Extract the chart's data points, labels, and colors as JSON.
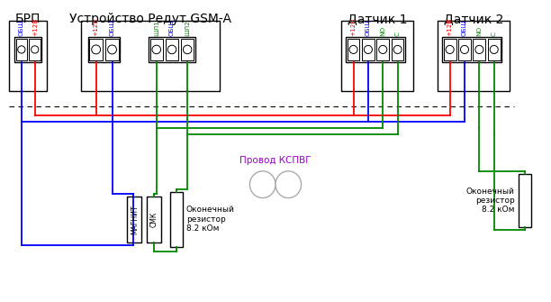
{
  "title_brp": "БРП",
  "title_redut": "Устройство Редут GSM-A",
  "title_d1": "Датчик 1",
  "title_d2": "Датчик 2",
  "label_kspvg": "Провод КСПВГ",
  "label_res1": "Оконечный\nрезистор\n8.2 кОм",
  "label_res2": "Оконечный\nрезистор\n8.2 кОм",
  "label_magnit": "МАГНИТ",
  "label_smk": "СМК",
  "label_brp_pins": [
    "ОБЩ",
    "+12В"
  ],
  "label_redut_pins1": [
    "+12В",
    "ОБЩ"
  ],
  "label_redut_pins2": [
    "ШЛ1",
    "ОБЩ",
    "ШЛ2"
  ],
  "label_d1_pins": [
    "+12В",
    "ОБЩ",
    "NO",
    "С"
  ],
  "label_d2_pins": [
    "+12В",
    "ОБЩ",
    "NO",
    "С"
  ],
  "color_red": "#ff0000",
  "color_blue": "#0000ff",
  "color_green": "#008800",
  "color_black": "#000000",
  "color_gray": "#aaaaaa",
  "color_kspvg": "#9900cc",
  "bg_color": "#ffffff"
}
